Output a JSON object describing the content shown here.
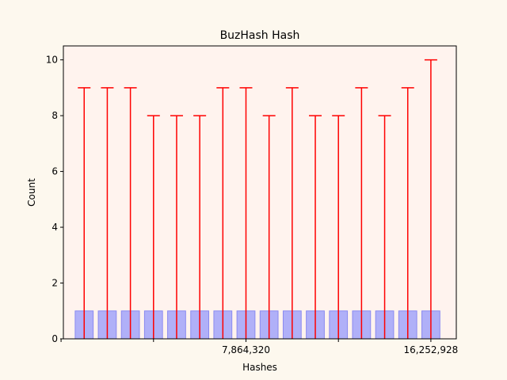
{
  "chart_data": {
    "type": "bar",
    "title": "BuzHash Hash",
    "xlabel": "Hashes",
    "ylabel": "Count",
    "ylim": [
      0,
      10.5
    ],
    "yticks": [
      0,
      2,
      4,
      6,
      8,
      10
    ],
    "xticks": [
      {
        "position": 8,
        "label": "7,864,320"
      },
      {
        "position": 16,
        "label": "16,252,928"
      }
    ],
    "xlim": [
      0.1,
      17.1
    ],
    "values": [
      1,
      1,
      1,
      1,
      1,
      1,
      1,
      1,
      1,
      1,
      1,
      1,
      1,
      1,
      1,
      1
    ],
    "error_upper": [
      9,
      9,
      9,
      8,
      8,
      8,
      9,
      9,
      8,
      9,
      8,
      8,
      9,
      8,
      9,
      10
    ],
    "bar_color": "#b0b0f8",
    "bar_edge_color": "#8a8af0",
    "error_color": "#ff0000",
    "plot_background": "#fff3ee",
    "figure_background": "#fdf8ee",
    "grid": false,
    "legend": "none"
  }
}
